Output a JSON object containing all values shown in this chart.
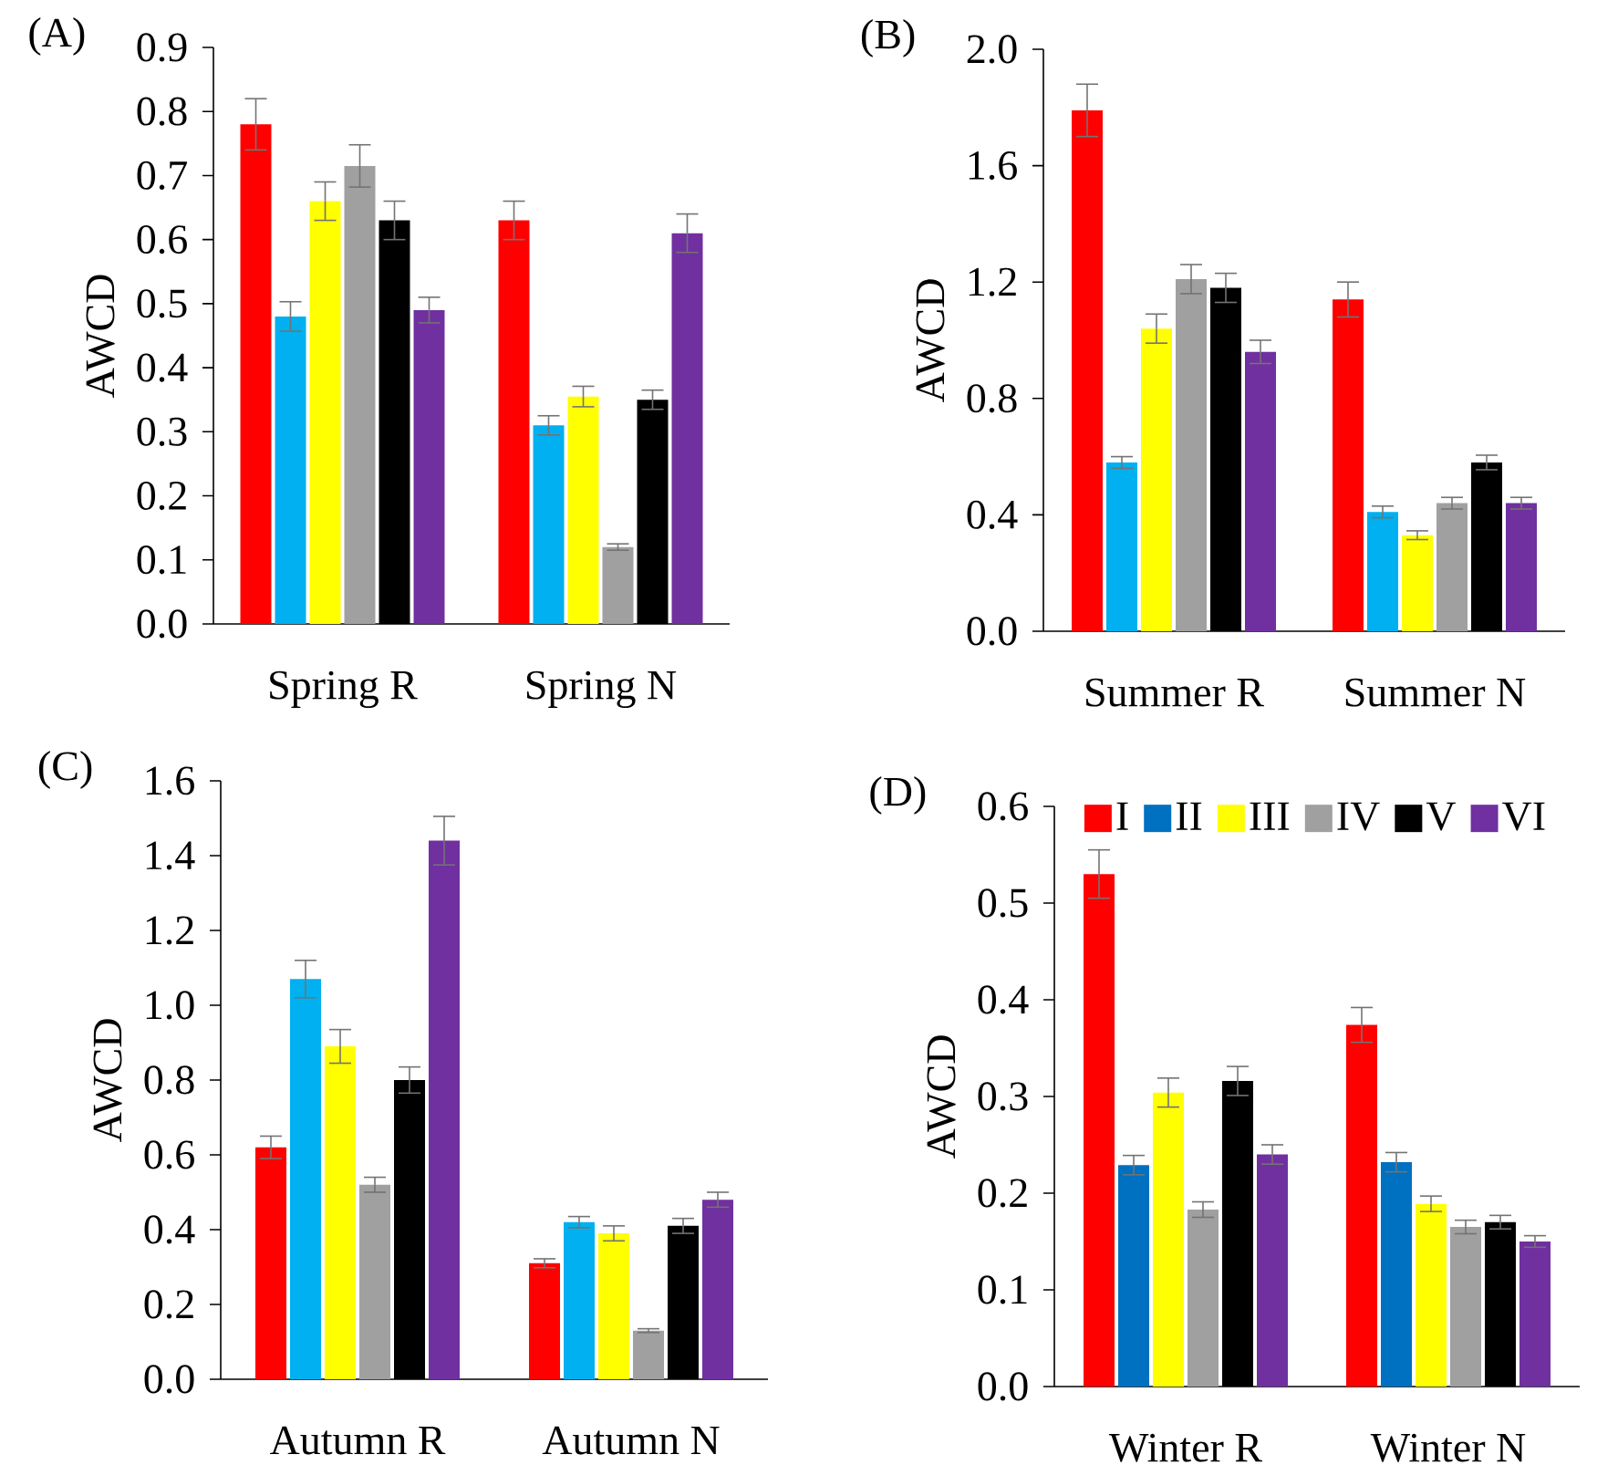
{
  "chart_data": [
    {
      "type": "bar",
      "title": "(A)",
      "ylabel": "AWCD",
      "categories": [
        "Spring R",
        "Spring N"
      ],
      "ylim": [
        0,
        0.9
      ],
      "yticks": [
        {
          "value": 0,
          "label": "0.0"
        },
        0.1,
        0.2,
        0.3,
        0.4,
        0.5,
        0.6,
        0.7,
        0.8,
        0.9
      ],
      "series": [
        {
          "color": "#ff0000",
          "values": [
            0.78,
            0.63
          ],
          "errors": [
            0.04,
            0.03
          ]
        },
        {
          "color": "#00b0f0",
          "values": [
            0.48,
            0.31
          ],
          "errors": [
            0.023,
            0.015
          ]
        },
        {
          "color": "#ffff00",
          "values": [
            0.66,
            0.355
          ],
          "errors": [
            0.03,
            0.016
          ]
        },
        {
          "color": "#a0a0a0",
          "values": [
            0.715,
            0.12
          ],
          "errors": [
            0.033,
            0.005
          ]
        },
        {
          "color": "#000000",
          "values": [
            0.63,
            0.35
          ],
          "errors": [
            0.03,
            0.015
          ]
        },
        {
          "color": "#7030a0",
          "values": [
            0.49,
            0.61
          ],
          "errors": [
            0.02,
            0.03
          ]
        }
      ]
    },
    {
      "type": "bar",
      "title": "(B)",
      "ylabel": "AWCD",
      "categories": [
        "Summer R",
        "Summer N"
      ],
      "ylim": [
        0,
        2.0
      ],
      "yticks": [
        {
          "value": 0,
          "label": "0.0"
        },
        0.4,
        0.8,
        1.2,
        1.6,
        {
          "value": 2,
          "label": "2.0"
        }
      ],
      "series": [
        {
          "color": "#ff0000",
          "values": [
            1.79,
            1.14
          ],
          "errors": [
            0.09,
            0.06
          ]
        },
        {
          "color": "#00b0f0",
          "values": [
            0.58,
            0.41
          ],
          "errors": [
            0.02,
            0.02
          ]
        },
        {
          "color": "#ffff00",
          "values": [
            1.04,
            0.33
          ],
          "errors": [
            0.05,
            0.015
          ]
        },
        {
          "color": "#a0a0a0",
          "values": [
            1.21,
            0.44
          ],
          "errors": [
            0.05,
            0.02
          ]
        },
        {
          "color": "#000000",
          "values": [
            1.18,
            0.58
          ],
          "errors": [
            0.05,
            0.025
          ]
        },
        {
          "color": "#7030a0",
          "values": [
            0.96,
            0.44
          ],
          "errors": [
            0.04,
            0.02
          ]
        }
      ]
    },
    {
      "type": "bar",
      "title": "(C)",
      "ylabel": "AWCD",
      "categories": [
        "Autumn R",
        "Autumn N"
      ],
      "ylim": [
        0,
        1.6
      ],
      "yticks": [
        {
          "value": 0,
          "label": "0.0"
        },
        0.2,
        0.4,
        0.6,
        0.8,
        {
          "value": 1,
          "label": "1.0"
        },
        1.2,
        1.4,
        1.6
      ],
      "series": [
        {
          "color": "#ff0000",
          "values": [
            0.62,
            0.31
          ],
          "errors": [
            0.03,
            0.012
          ]
        },
        {
          "color": "#00b0f0",
          "values": [
            1.07,
            0.42
          ],
          "errors": [
            0.05,
            0.015
          ]
        },
        {
          "color": "#ffff00",
          "values": [
            0.89,
            0.39
          ],
          "errors": [
            0.045,
            0.02
          ]
        },
        {
          "color": "#a0a0a0",
          "values": [
            0.52,
            0.13
          ],
          "errors": [
            0.02,
            0.005
          ]
        },
        {
          "color": "#000000",
          "values": [
            0.8,
            0.41
          ],
          "errors": [
            0.035,
            0.02
          ]
        },
        {
          "color": "#7030a0",
          "values": [
            1.44,
            0.48
          ],
          "errors": [
            0.065,
            0.02
          ]
        }
      ]
    },
    {
      "type": "bar",
      "title": "(D)",
      "ylabel": "AWCD",
      "categories": [
        "Winter R",
        "Winter N"
      ],
      "ylim": [
        0,
        0.6
      ],
      "yticks": [
        {
          "value": 0,
          "label": "0.0"
        },
        0.1,
        0.2,
        0.3,
        0.4,
        0.5,
        0.6
      ],
      "legend": "top",
      "series": [
        {
          "name": "I",
          "color": "#ff0000",
          "values": [
            0.53,
            0.374
          ],
          "errors": [
            0.025,
            0.018
          ]
        },
        {
          "name": "II",
          "color": "#0070c0",
          "values": [
            0.229,
            0.232
          ],
          "errors": [
            0.01,
            0.01
          ]
        },
        {
          "name": "III",
          "color": "#ffff00",
          "values": [
            0.304,
            0.189
          ],
          "errors": [
            0.015,
            0.008
          ]
        },
        {
          "name": "IV",
          "color": "#a0a0a0",
          "values": [
            0.183,
            0.165
          ],
          "errors": [
            0.008,
            0.007
          ]
        },
        {
          "name": "V",
          "color": "#000000",
          "values": [
            0.316,
            0.17
          ],
          "errors": [
            0.015,
            0.007
          ]
        },
        {
          "name": "VI",
          "color": "#7030a0",
          "values": [
            0.24,
            0.15
          ],
          "errors": [
            0.01,
            0.006
          ]
        }
      ]
    }
  ]
}
